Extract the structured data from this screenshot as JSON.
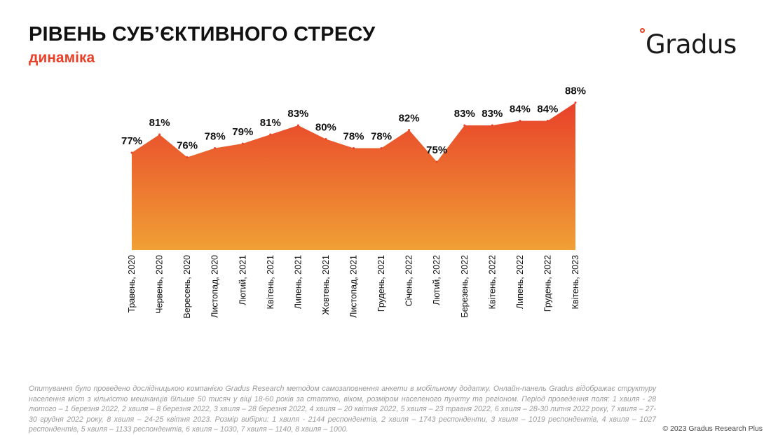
{
  "header": {
    "title": "РІВЕНЬ СУБ’ЄКТИВНОГО СТРЕСУ",
    "subtitle": "динаміка"
  },
  "logo": {
    "text": "Gradus",
    "icon": "gradus-circle-icon"
  },
  "colors": {
    "accent": "#e8412a",
    "area_top": "#e8412a",
    "area_bottom": "#f0a035"
  },
  "chart_data": {
    "type": "area",
    "categories": [
      "Травень, 2020",
      "Червень, 2020",
      "Вересень, 2020",
      "Листопад, 2020",
      "Лютий, 2021",
      "Квітень, 2021",
      "Липень, 2021",
      "Жовтень, 2021",
      "Листопад, 2021",
      "Грудень, 2021",
      "Січень, 2022",
      "Лютий, 2022",
      "Березень, 2022",
      "Квітень, 2022",
      "Липень, 2022",
      "Грудень, 2022",
      "Квітень, 2023"
    ],
    "values": [
      77,
      81,
      76,
      78,
      79,
      81,
      83,
      80,
      78,
      78,
      82,
      75,
      83,
      83,
      84,
      84,
      88
    ],
    "data_labels": [
      "77%",
      "81%",
      "76%",
      "78%",
      "79%",
      "81%",
      "83%",
      "80%",
      "78%",
      "78%",
      "82%",
      "75%",
      "83%",
      "83%",
      "84%",
      "84%",
      "88%"
    ],
    "unit": "%",
    "grid": false,
    "legend": "none"
  },
  "footnote": "Опитування було проведено дослідницькою компанією Gradus Research методом самозаповнення анкети в мобільному додатку. Онлайн-панель Gradus відображає структуру населення міст з кількістю мешканців більше 50 тисяч у віці 18-60 років за статтю, віком, розміром населеного пункту та регіоном. Період проведення поля: 1 хвиля - 28 лютого – 1 березня 2022, 2 хвиля – 8 березня 2022, 3 хвиля – 28 березня 2022, 4 хвиля – 20 квітня 2022, 5 хвиля – 23 травня 2022, 6 хвиля – 28-30 липня 2022 року, 7 хвиля – 27-30 грудня 2022 року, 8 хвиля – 24-25 квітня 2023. Розмір вибірки: 1 хвиля - 2144 респондентів, 2 хвиля – 1743 респонденти, 3 хвиля – 1019 респондентів, 4 хвиля – 1027 респондентів, 5 хвиля – 1133 респондентів, 6 хвиля – 1030, 7 хвиля – 1140, 8 хвиля – 1000.",
  "copyright": "© 2023 Gradus Research Plus"
}
